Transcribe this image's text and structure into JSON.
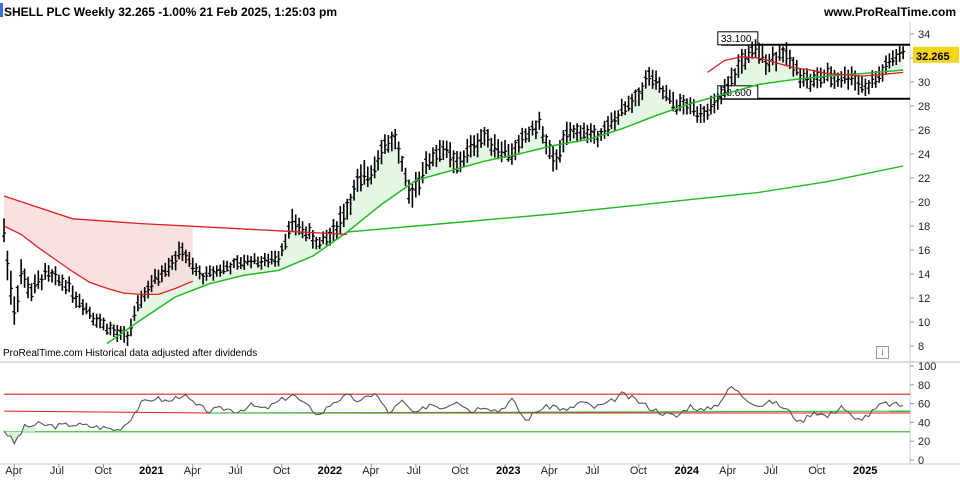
{
  "header": {
    "title": "SHELL PLC Weekly 32.265 -1.00% 21 Feb 2025, 1:25:03 pm",
    "site": "www.ProRealTime.com"
  },
  "footer_note": "ProRealTime.com  Historical data adjusted after dividends",
  "info_icon": "i",
  "price_label": "32.265",
  "colors": {
    "price_bars": "#000000",
    "ma_red": "#e02020",
    "ma_green": "#22bb22",
    "fill_green": "#d8f4d8",
    "fill_red": "#f8dada",
    "price_tag_bg": "#f5d51a",
    "rsi_line": "#555555",
    "band_red": "#e02020",
    "band_green": "#22bb22"
  },
  "chart_data": [
    {
      "type": "line",
      "ylim": [
        7,
        35
      ],
      "yticks": [
        8,
        10,
        12,
        14,
        16,
        18,
        20,
        22,
        24,
        26,
        28,
        30,
        32,
        34
      ],
      "price_anchors": {
        "t": [
          0,
          1,
          3,
          5,
          8,
          12,
          16,
          19,
          21,
          23,
          26,
          29,
          33,
          36,
          40,
          44,
          47,
          50,
          52,
          55,
          58,
          61,
          64,
          68,
          72,
          76,
          80,
          84,
          88,
          92,
          96,
          100,
          103,
          107,
          110,
          114,
          118,
          121,
          124,
          128,
          132,
          136,
          140,
          144,
          148,
          152,
          156,
          160,
          164,
          168,
          172,
          176,
          180,
          184,
          188,
          191,
          195,
          199,
          203,
          207,
          211,
          215,
          219,
          223,
          227,
          231,
          235,
          239,
          243,
          247,
          251,
          255,
          259,
          262
        ],
        "close": [
          17.5,
          15,
          11,
          14,
          12.5,
          14,
          13.5,
          13,
          12,
          11.5,
          10.5,
          9.8,
          9,
          8.8,
          12,
          13.5,
          14.5,
          15.3,
          16,
          14.5,
          13.8,
          14.2,
          14.5,
          14.8,
          15.2,
          15,
          15.5,
          18.3,
          17.5,
          16.5,
          17.5,
          19.5,
          21.5,
          22.5,
          24.5,
          25.3,
          20.5,
          22,
          23.5,
          24.5,
          23,
          24.5,
          25.5,
          24.5,
          24,
          25.5,
          26.5,
          23.2,
          25.5,
          26,
          25.5,
          26.2,
          27.5,
          28.5,
          30.5,
          29.5,
          28.2,
          28,
          27.5,
          28,
          29.5,
          31.8,
          32.5,
          31.8,
          32.5,
          31,
          30,
          30.5,
          30.3,
          30.5,
          29.5,
          30.5,
          32,
          32.3
        ],
        "range": [
          2.2,
          2.5,
          2.5,
          2,
          1.8,
          1.5,
          1.2,
          1.2,
          1.2,
          1.2,
          1.2,
          1.2,
          1.2,
          1.2,
          1.5,
          1.4,
          1.3,
          1.4,
          1.4,
          1.2,
          1.1,
          1.1,
          1.1,
          1.1,
          1.1,
          1.1,
          1.2,
          1.5,
          1.4,
          1.4,
          1.8,
          2,
          2,
          2,
          1.8,
          1.6,
          2,
          2,
          1.8,
          1.8,
          1.8,
          1.7,
          1.6,
          1.6,
          1.6,
          1.5,
          1.5,
          2,
          1.6,
          1.5,
          1.4,
          1.4,
          1.5,
          1.6,
          1.6,
          1.5,
          1.5,
          1.4,
          1.4,
          1.4,
          1.6,
          1.8,
          1.7,
          1.7,
          1.6,
          1.6,
          1.6,
          1.6,
          1.6,
          1.6,
          1.5,
          1.5,
          1.4,
          1.2
        ]
      },
      "ma_red": {
        "t": [
          0,
          20,
          40,
          60,
          80,
          100,
          115,
          130,
          145,
          160,
          175,
          190,
          200,
          210,
          220,
          230,
          240,
          250,
          262
        ],
        "y": [
          20.5,
          18.6,
          18.2,
          17.9,
          17.6,
          17.3,
          17.5,
          17.8,
          18.0,
          18.4,
          18.8,
          19.2,
          29.1,
          30.5,
          31.2,
          31.0,
          30.6,
          30.3,
          30.6
        ]
      },
      "ma_red_early": {
        "t": [
          0,
          5,
          10,
          15,
          20,
          25,
          30,
          35,
          40,
          45,
          50,
          55
        ],
        "y": [
          18.0,
          17.3,
          16.2,
          15.2,
          14.2,
          13.3,
          12.8,
          12.4,
          12.3,
          12.3,
          12.8,
          13.4
        ]
      },
      "ma_green_mid": {
        "t": [
          0,
          10,
          20,
          30,
          40,
          50,
          60,
          70,
          80,
          90,
          100,
          110,
          120,
          130,
          140,
          150,
          160,
          170,
          180,
          190,
          200,
          210,
          220,
          230,
          240,
          250,
          262
        ],
        "y": [
          5.5,
          6.0,
          7.0,
          8.2,
          10.2,
          12.1,
          13.2,
          13.9,
          14.3,
          15.5,
          17.5,
          19.8,
          21.8,
          22.6,
          23.4,
          24.0,
          24.7,
          25.2,
          26.1,
          27.2,
          28.2,
          29.0,
          29.8,
          30.2,
          30.5,
          30.7,
          31.0
        ]
      },
      "ma_green_long": {
        "t": [
          100,
          120,
          140,
          160,
          180,
          200,
          220,
          240,
          262
        ],
        "y": [
          17.5,
          18.0,
          18.5,
          19.0,
          19.6,
          20.2,
          20.8,
          21.7,
          23.0
        ]
      },
      "resistance": 33.1,
      "support": 28.6,
      "resistance_label": "33.100",
      "support_label": "28.600",
      "last_price": 32.265
    },
    {
      "type": "line",
      "ylim": [
        0,
        100
      ],
      "yticks": [
        0,
        20,
        40,
        60,
        80,
        100
      ],
      "upper_band": 70,
      "lower_band": 30,
      "mid_band": 50,
      "rsi": {
        "t": [
          0,
          3,
          6,
          10,
          15,
          20,
          25,
          30,
          33,
          36,
          40,
          44,
          48,
          52,
          56,
          60,
          64,
          68,
          72,
          76,
          80,
          84,
          88,
          92,
          96,
          100,
          104,
          108,
          112,
          116,
          120,
          124,
          128,
          132,
          136,
          140,
          144,
          148,
          152,
          156,
          160,
          164,
          168,
          172,
          176,
          180,
          184,
          188,
          192,
          196,
          200,
          204,
          208,
          212,
          216,
          220,
          224,
          228,
          232,
          236,
          240,
          244,
          248,
          252,
          256,
          262
        ],
        "y": [
          32,
          18,
          35,
          38,
          36,
          38,
          36,
          34,
          32,
          40,
          60,
          66,
          62,
          70,
          58,
          52,
          55,
          52,
          58,
          54,
          62,
          70,
          58,
          48,
          62,
          68,
          62,
          72,
          50,
          62,
          48,
          60,
          56,
          64,
          52,
          58,
          52,
          64,
          42,
          54,
          58,
          52,
          62,
          56,
          60,
          70,
          64,
          56,
          50,
          46,
          58,
          52,
          60,
          78,
          66,
          58,
          62,
          54,
          40,
          52,
          46,
          58,
          42,
          48,
          60,
          58
        ]
      }
    }
  ],
  "x_axis": {
    "labels": [
      {
        "t": 3,
        "text": "Apr",
        "bold": false
      },
      {
        "t": 16,
        "text": "Jul",
        "bold": false
      },
      {
        "t": 29,
        "text": "Oct",
        "bold": false
      },
      {
        "t": 42,
        "text": "2021",
        "bold": true
      },
      {
        "t": 55,
        "text": "Apr",
        "bold": false
      },
      {
        "t": 68,
        "text": "Jul",
        "bold": false
      },
      {
        "t": 81,
        "text": "Oct",
        "bold": false
      },
      {
        "t": 94,
        "text": "2022",
        "bold": true
      },
      {
        "t": 107,
        "text": "Apr",
        "bold": false
      },
      {
        "t": 120,
        "text": "Jul",
        "bold": false
      },
      {
        "t": 133,
        "text": "Oct",
        "bold": false
      },
      {
        "t": 146,
        "text": "2023",
        "bold": true
      },
      {
        "t": 159,
        "text": "Apr",
        "bold": false
      },
      {
        "t": 172,
        "text": "Jul",
        "bold": false
      },
      {
        "t": 185,
        "text": "Oct",
        "bold": false
      },
      {
        "t": 198,
        "text": "2024",
        "bold": true
      },
      {
        "t": 211,
        "text": "Apr",
        "bold": false
      },
      {
        "t": 224,
        "text": "Jul",
        "bold": false
      },
      {
        "t": 237,
        "text": "Oct",
        "bold": false
      },
      {
        "t": 250,
        "text": "2025",
        "bold": true
      }
    ]
  }
}
